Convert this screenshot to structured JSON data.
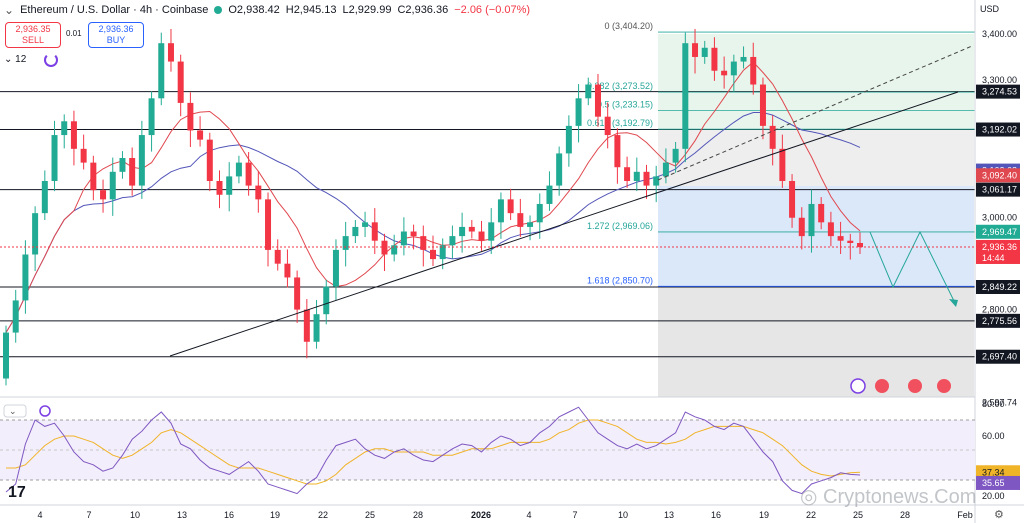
{
  "header": {
    "symbol": "Ethereum / U.S. Dollar · 4h · Coinbase",
    "ohlc_o": "O2,938.42",
    "ohlc_h": "H2,945.13",
    "ohlc_l": "L2,929.99",
    "ohlc_c": "C2,936.36",
    "change": "−2.06 (−0.07%)",
    "sell_price": "2,936.35",
    "sell_label": "SELL",
    "spread": "0.01",
    "buy_price": "2,936.36",
    "buy_label": "BUY",
    "interval_count": "12",
    "currency": "USD"
  },
  "colors": {
    "up": "#22ab94",
    "down": "#f23645",
    "ma_fast": "#e0484f",
    "ma_slow": "#5356b8",
    "rsi": "#7e57c2",
    "rsi_ma": "#f0b429"
  },
  "chart_data": {
    "type": "candlestick",
    "y_range": [
      2590,
      3440
    ],
    "y_ticks": [
      "3,400.00",
      "3,300.00",
      "3,000.00",
      "2,800.00",
      "2,597.74"
    ],
    "x_ticks": [
      "4",
      "7",
      "10",
      "13",
      "16",
      "19",
      "22",
      "25",
      "28",
      "2026",
      "4",
      "7",
      "10",
      "13",
      "16",
      "19",
      "22",
      "25",
      "28",
      "Feb"
    ],
    "price_levels": [
      {
        "value": 3274.53,
        "label": "3,274.53"
      },
      {
        "value": 3192.02,
        "label": "3,192.02"
      },
      {
        "value": 3061.17,
        "label": "3,061.17"
      },
      {
        "value": 2849.22,
        "label": "2,849.22"
      },
      {
        "value": 2775.56,
        "label": "2,775.56"
      },
      {
        "value": 2697.4,
        "label": "2,697.40"
      }
    ],
    "axis_badges": [
      {
        "value": 3102.62,
        "label": "3,102.62",
        "color": "#5356b8"
      },
      {
        "value": 3092.4,
        "label": "3,092.40",
        "color": "#e0484f"
      },
      {
        "value": 2969.47,
        "label": "2,969.47",
        "color": "#22ab94"
      },
      {
        "value": 2936.36,
        "label": "2,936.36",
        "sub": "14:44",
        "color": "#f23645"
      }
    ],
    "fibonacci": [
      {
        "ratio": "0",
        "label": "0 (3,404.20)",
        "value": 3404.2
      },
      {
        "ratio": "0.382",
        "label": "0.382 (3,273.52)",
        "value": 3273.52
      },
      {
        "ratio": "0.5",
        "label": "0.5 (3,233.15)",
        "value": 3233.15
      },
      {
        "ratio": "0.618",
        "label": "0.618 (3,192.79)",
        "value": 3192.79
      },
      {
        "ratio": "1.272",
        "label": "1.272 (2,969.06)",
        "value": 2969.06
      },
      {
        "ratio": "1.618",
        "label": "1.618 (2,850.70)",
        "value": 2850.7
      }
    ],
    "closes": [
      2750,
      2820,
      2920,
      3010,
      3080,
      3180,
      3210,
      3150,
      3120,
      3060,
      3040,
      3100,
      3130,
      3070,
      3180,
      3260,
      3380,
      3340,
      3250,
      3190,
      3170,
      3080,
      3050,
      3090,
      3120,
      3070,
      3040,
      2930,
      2900,
      2870,
      2800,
      2730,
      2790,
      2850,
      2930,
      2960,
      2980,
      2990,
      2950,
      2920,
      2940,
      2970,
      2960,
      2930,
      2910,
      2940,
      2960,
      2980,
      2970,
      2950,
      2990,
      3040,
      3010,
      2980,
      2990,
      3030,
      3070,
      3140,
      3200,
      3260,
      3290,
      3220,
      3180,
      3110,
      3080,
      3100,
      3070,
      3090,
      3120,
      3150,
      3380,
      3350,
      3370,
      3320,
      3310,
      3340,
      3350,
      3290,
      3200,
      3150,
      3080,
      3000,
      2960,
      3030,
      2990,
      2960,
      2950,
      2945,
      2936
    ],
    "rsi": {
      "levels": [
        80,
        60,
        37.34,
        35.65
      ],
      "labels": [
        "80.00",
        "60.00",
        "37.34",
        "35.65",
        "20.00"
      ],
      "values": [
        25,
        30,
        55,
        70,
        66,
        68,
        60,
        50,
        44,
        42,
        38,
        40,
        48,
        58,
        63,
        70,
        75,
        68,
        55,
        52,
        45,
        40,
        38,
        36,
        40,
        44,
        38,
        30,
        28,
        26,
        24,
        30,
        34,
        45,
        54,
        56,
        58,
        52,
        48,
        46,
        50,
        52,
        48,
        45,
        44,
        48,
        52,
        55,
        54,
        50,
        56,
        60,
        58,
        54,
        56,
        62,
        66,
        72,
        75,
        78,
        70,
        62,
        58,
        54,
        52,
        55,
        52,
        54,
        58,
        62,
        75,
        72,
        70,
        66,
        64,
        68,
        66,
        58,
        50,
        44,
        32,
        26,
        24,
        30,
        32,
        34,
        37,
        36,
        35.65
      ],
      "ma_values": [
        40,
        40,
        42,
        48,
        54,
        58,
        60,
        60,
        58,
        56,
        52,
        48,
        46,
        48,
        52,
        56,
        62,
        64,
        62,
        58,
        54,
        50,
        46,
        42,
        40,
        40,
        40,
        38,
        36,
        34,
        32,
        30,
        30,
        32,
        36,
        42,
        46,
        50,
        52,
        52,
        50,
        50,
        50,
        50,
        48,
        48,
        48,
        50,
        52,
        52,
        52,
        54,
        56,
        56,
        56,
        56,
        58,
        62,
        64,
        68,
        70,
        70,
        68,
        66,
        62,
        58,
        56,
        56,
        55,
        56,
        58,
        62,
        64,
        66,
        66,
        66,
        66,
        64,
        62,
        58,
        54,
        48,
        42,
        38,
        36,
        35,
        36,
        37,
        37.34
      ]
    }
  },
  "watermark": "Cryptonews.Com"
}
